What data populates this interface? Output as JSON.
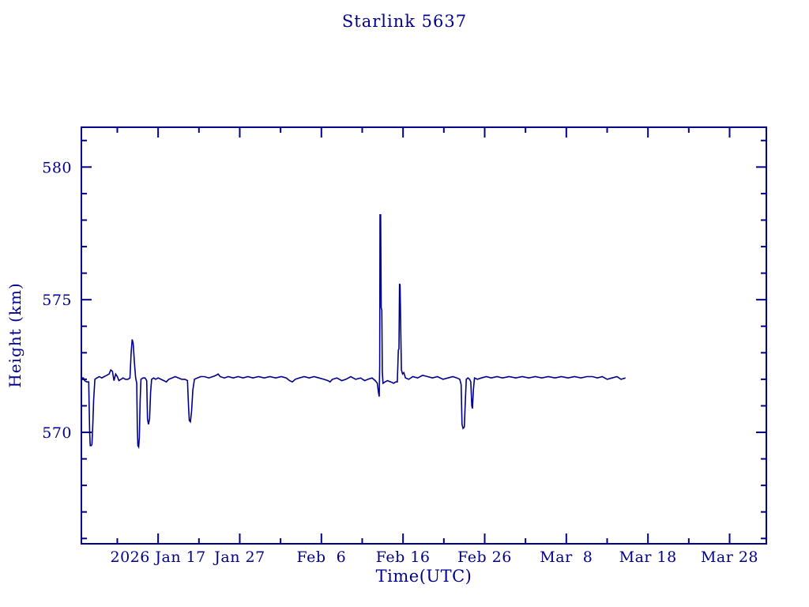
{
  "page": {
    "background": "#ffffff",
    "accent": "#00008b"
  },
  "chart_data": {
    "type": "line",
    "title": "Starlink 5637",
    "xlabel": "Time(UTC)",
    "ylabel": "Height (km)",
    "line_color": "#00008b",
    "axis_color": "#00008b",
    "grid": false,
    "legend": "none",
    "x_unit": "days relative to 2026 Jan 17",
    "xlim": [
      -9.4,
      74.5
    ],
    "ylim": [
      565.8,
      581.5
    ],
    "x_major_ticks": [
      {
        "value": 0,
        "label": "2026 Jan 17"
      },
      {
        "value": 10,
        "label": "Jan 27"
      },
      {
        "value": 20,
        "label": "Feb  6"
      },
      {
        "value": 30,
        "label": "Feb 16"
      },
      {
        "value": 40,
        "label": "Feb 26"
      },
      {
        "value": 50,
        "label": "Mar  8"
      },
      {
        "value": 60,
        "label": "Mar 18"
      },
      {
        "value": 70,
        "label": "Mar 28"
      }
    ],
    "x_minor_ticks": [
      -5,
      5,
      15,
      25,
      35,
      45,
      55,
      65
    ],
    "y_major_ticks": [
      {
        "value": 570,
        "label": "570"
      },
      {
        "value": 575,
        "label": "575"
      },
      {
        "value": 580,
        "label": "580"
      }
    ],
    "y_minor_step": 1,
    "series": [
      {
        "name": "height",
        "points": [
          [
            -9.38,
            572.05
          ],
          [
            -9.15,
            572.05
          ],
          [
            -9.0,
            571.95
          ],
          [
            -8.75,
            571.9
          ],
          [
            -8.5,
            571.9
          ],
          [
            -8.42,
            570.6
          ],
          [
            -8.38,
            570.0
          ],
          [
            -8.32,
            569.5
          ],
          [
            -8.18,
            569.5
          ],
          [
            -8.1,
            569.55
          ],
          [
            -8.0,
            570.3
          ],
          [
            -7.9,
            571.2
          ],
          [
            -7.75,
            572.0
          ],
          [
            -7.5,
            572.05
          ],
          [
            -7.2,
            572.1
          ],
          [
            -6.9,
            572.05
          ],
          [
            -6.6,
            572.1
          ],
          [
            -6.3,
            572.15
          ],
          [
            -6.0,
            572.2
          ],
          [
            -5.8,
            572.35
          ],
          [
            -5.6,
            572.3
          ],
          [
            -5.4,
            571.95
          ],
          [
            -5.2,
            572.2
          ],
          [
            -5.0,
            572.1
          ],
          [
            -4.8,
            571.95
          ],
          [
            -4.55,
            572.0
          ],
          [
            -4.3,
            572.05
          ],
          [
            -4.0,
            572.0
          ],
          [
            -3.7,
            572.0
          ],
          [
            -3.45,
            572.05
          ],
          [
            -3.3,
            573.0
          ],
          [
            -3.18,
            573.5
          ],
          [
            -3.05,
            573.35
          ],
          [
            -2.9,
            572.6
          ],
          [
            -2.75,
            572.05
          ],
          [
            -2.62,
            571.85
          ],
          [
            -2.55,
            570.2
          ],
          [
            -2.48,
            569.5
          ],
          [
            -2.38,
            569.45
          ],
          [
            -2.3,
            569.8
          ],
          [
            -2.2,
            571.2
          ],
          [
            -2.1,
            572.0
          ],
          [
            -1.85,
            572.05
          ],
          [
            -1.6,
            572.05
          ],
          [
            -1.4,
            571.95
          ],
          [
            -1.3,
            570.5
          ],
          [
            -1.18,
            570.3
          ],
          [
            -1.05,
            570.5
          ],
          [
            -0.92,
            571.5
          ],
          [
            -0.8,
            572.0
          ],
          [
            -0.55,
            572.05
          ],
          [
            -0.3,
            572.0
          ],
          [
            0.0,
            572.05
          ],
          [
            0.35,
            572.0
          ],
          [
            0.7,
            571.95
          ],
          [
            1.0,
            571.9
          ],
          [
            1.3,
            572.0
          ],
          [
            1.7,
            572.05
          ],
          [
            2.1,
            572.1
          ],
          [
            2.5,
            572.05
          ],
          [
            2.9,
            572.0
          ],
          [
            3.3,
            572.0
          ],
          [
            3.6,
            571.95
          ],
          [
            3.72,
            571.0
          ],
          [
            3.82,
            570.45
          ],
          [
            3.95,
            570.4
          ],
          [
            4.1,
            570.8
          ],
          [
            4.25,
            571.6
          ],
          [
            4.45,
            572.0
          ],
          [
            4.8,
            572.05
          ],
          [
            5.2,
            572.1
          ],
          [
            5.7,
            572.1
          ],
          [
            6.2,
            572.05
          ],
          [
            6.7,
            572.1
          ],
          [
            7.1,
            572.15
          ],
          [
            7.35,
            572.2
          ],
          [
            7.6,
            572.1
          ],
          [
            8.1,
            572.05
          ],
          [
            8.6,
            572.1
          ],
          [
            9.2,
            572.05
          ],
          [
            9.8,
            572.1
          ],
          [
            10.4,
            572.05
          ],
          [
            11.0,
            572.1
          ],
          [
            11.6,
            572.05
          ],
          [
            12.3,
            572.1
          ],
          [
            13.0,
            572.05
          ],
          [
            13.7,
            572.1
          ],
          [
            14.4,
            572.05
          ],
          [
            15.1,
            572.1
          ],
          [
            15.7,
            572.05
          ],
          [
            16.1,
            571.95
          ],
          [
            16.45,
            571.9
          ],
          [
            16.8,
            572.0
          ],
          [
            17.3,
            572.05
          ],
          [
            17.9,
            572.1
          ],
          [
            18.5,
            572.05
          ],
          [
            19.1,
            572.1
          ],
          [
            19.7,
            572.05
          ],
          [
            20.3,
            572.0
          ],
          [
            20.8,
            571.95
          ],
          [
            21.05,
            571.9
          ],
          [
            21.35,
            572.0
          ],
          [
            21.9,
            572.05
          ],
          [
            22.5,
            571.95
          ],
          [
            23.0,
            572.0
          ],
          [
            23.6,
            572.1
          ],
          [
            24.2,
            572.0
          ],
          [
            24.8,
            572.05
          ],
          [
            25.3,
            571.95
          ],
          [
            25.7,
            572.0
          ],
          [
            26.2,
            572.05
          ],
          [
            26.6,
            571.95
          ],
          [
            26.85,
            571.85
          ],
          [
            27.0,
            571.5
          ],
          [
            27.08,
            571.35
          ],
          [
            27.14,
            572.5
          ],
          [
            27.18,
            578.2
          ],
          [
            27.26,
            578.2
          ],
          [
            27.32,
            574.7
          ],
          [
            27.4,
            574.6
          ],
          [
            27.46,
            572.3
          ],
          [
            27.55,
            571.85
          ],
          [
            27.8,
            571.9
          ],
          [
            28.1,
            571.95
          ],
          [
            28.5,
            571.9
          ],
          [
            28.85,
            571.85
          ],
          [
            29.1,
            571.9
          ],
          [
            29.3,
            571.9
          ],
          [
            29.42,
            573.1
          ],
          [
            29.5,
            573.15
          ],
          [
            29.57,
            575.6
          ],
          [
            29.64,
            575.55
          ],
          [
            29.72,
            573.8
          ],
          [
            29.8,
            572.35
          ],
          [
            29.95,
            572.2
          ],
          [
            30.1,
            572.25
          ],
          [
            30.3,
            572.05
          ],
          [
            30.7,
            572.0
          ],
          [
            31.2,
            572.1
          ],
          [
            31.8,
            572.05
          ],
          [
            32.4,
            572.15
          ],
          [
            33.0,
            572.1
          ],
          [
            33.6,
            572.05
          ],
          [
            34.2,
            572.1
          ],
          [
            34.9,
            572.0
          ],
          [
            35.5,
            572.05
          ],
          [
            36.1,
            572.1
          ],
          [
            36.6,
            572.05
          ],
          [
            36.95,
            572.0
          ],
          [
            37.12,
            571.8
          ],
          [
            37.22,
            570.3
          ],
          [
            37.35,
            570.15
          ],
          [
            37.5,
            570.2
          ],
          [
            37.62,
            571.1
          ],
          [
            37.75,
            572.0
          ],
          [
            37.95,
            572.05
          ],
          [
            38.15,
            572.0
          ],
          [
            38.3,
            571.9
          ],
          [
            38.42,
            571.0
          ],
          [
            38.5,
            570.9
          ],
          [
            38.62,
            571.6
          ],
          [
            38.75,
            572.05
          ],
          [
            39.1,
            572.0
          ],
          [
            39.6,
            572.05
          ],
          [
            40.2,
            572.1
          ],
          [
            40.8,
            572.05
          ],
          [
            41.5,
            572.1
          ],
          [
            42.2,
            572.05
          ],
          [
            43.0,
            572.1
          ],
          [
            43.8,
            572.05
          ],
          [
            44.6,
            572.1
          ],
          [
            45.4,
            572.05
          ],
          [
            46.2,
            572.1
          ],
          [
            47.0,
            572.05
          ],
          [
            47.8,
            572.1
          ],
          [
            48.6,
            572.05
          ],
          [
            49.4,
            572.1
          ],
          [
            50.2,
            572.05
          ],
          [
            51.0,
            572.1
          ],
          [
            51.8,
            572.05
          ],
          [
            52.5,
            572.1
          ],
          [
            53.2,
            572.1
          ],
          [
            53.8,
            572.05
          ],
          [
            54.4,
            572.1
          ],
          [
            55.0,
            572.0
          ],
          [
            55.6,
            572.05
          ],
          [
            56.2,
            572.1
          ],
          [
            56.7,
            572.0
          ],
          [
            57.25,
            572.05
          ]
        ]
      }
    ]
  }
}
